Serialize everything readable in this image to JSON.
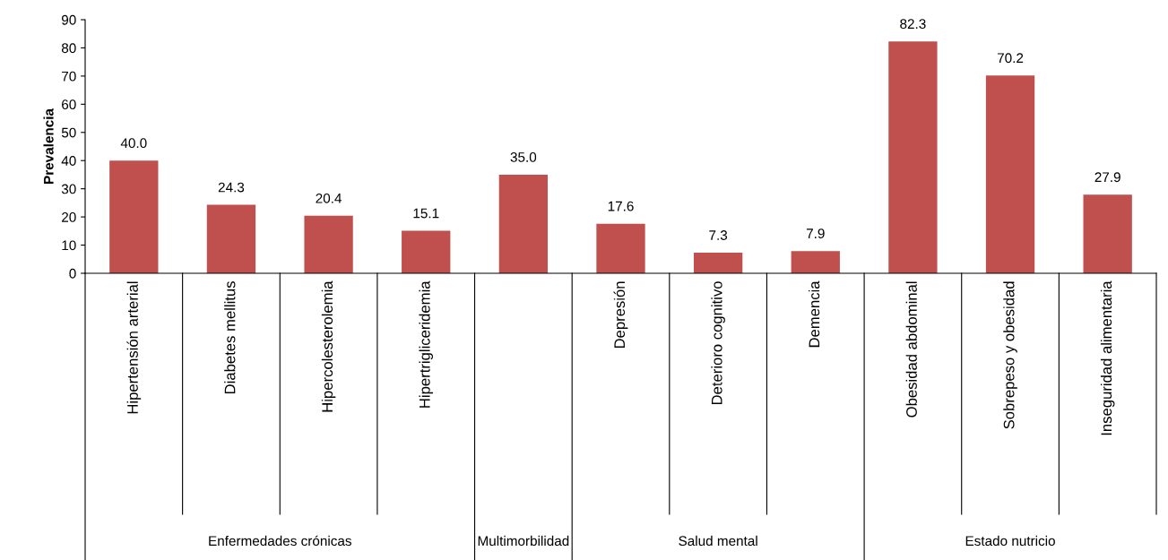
{
  "chart_data": {
    "type": "bar",
    "ylabel": "Prevalencia",
    "categories": [
      "Hipertensión arterial",
      "Diabetes mellitus",
      "Hipercolesterolemia",
      "Hipertrigliceridemia",
      null,
      "Depresión",
      "Deterioro cognitivo",
      "Demencia",
      "Obesidad abdominal",
      "Sobrepeso y obesidad",
      "Inseguridad alimentaria"
    ],
    "values": [
      40.0,
      24.3,
      20.4,
      15.1,
      35.0,
      17.6,
      7.3,
      7.9,
      82.3,
      70.2,
      27.9
    ],
    "value_labels": [
      "40.0",
      "24.3",
      "20.4",
      "15.1",
      "35.0",
      "17.6",
      "7.3",
      "7.9",
      "82.3",
      "70.2",
      "27.9"
    ],
    "color": "#c0504d",
    "ylim": [
      0,
      90
    ],
    "yticks": [
      0,
      10,
      20,
      30,
      40,
      50,
      60,
      70,
      80,
      90
    ],
    "grid": false,
    "legend": false,
    "annotations": [
      "Enfermedades crónicas",
      "Multimorbilidad",
      "Salud mental",
      "Estado nutricio"
    ]
  }
}
